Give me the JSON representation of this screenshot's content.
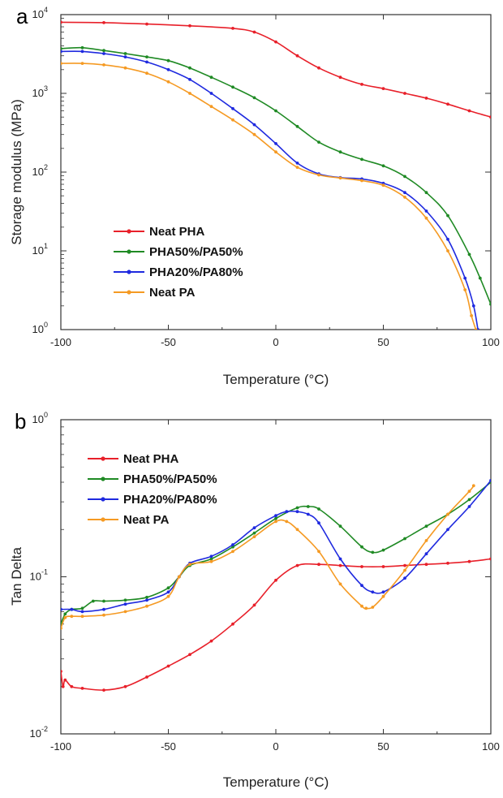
{
  "chart_data": [
    {
      "panel": "a",
      "type": "line",
      "xlabel": "Temperature (°C)",
      "ylabel": "Storage modulus (MPa)",
      "xlim": [
        -100,
        100
      ],
      "ylim": [
        1,
        10000
      ],
      "yscale": "log",
      "xticks": [
        "-100",
        "-50",
        "0",
        "50",
        "100"
      ],
      "yticks": [
        {
          "base": "10",
          "exp": "0"
        },
        {
          "base": "10",
          "exp": "1"
        },
        {
          "base": "10",
          "exp": "2"
        },
        {
          "base": "10",
          "exp": "3"
        },
        {
          "base": "10",
          "exp": "4"
        }
      ],
      "grid": false,
      "legend_position": "lower-left",
      "series": [
        {
          "name": "Neat PHA",
          "color": "#e8202a",
          "marker": "square",
          "points": [
            [
              -100,
              8000
            ],
            [
              -80,
              7900
            ],
            [
              -60,
              7600
            ],
            [
              -40,
              7200
            ],
            [
              -20,
              6700
            ],
            [
              -10,
              6000
            ],
            [
              0,
              4500
            ],
            [
              10,
              3000
            ],
            [
              20,
              2100
            ],
            [
              30,
              1600
            ],
            [
              40,
              1300
            ],
            [
              50,
              1150
            ],
            [
              60,
              1000
            ],
            [
              70,
              870
            ],
            [
              80,
              730
            ],
            [
              90,
              600
            ],
            [
              100,
              500
            ]
          ]
        },
        {
          "name": "PHA50%/PA50%",
          "color": "#1f8a24",
          "marker": "triangle",
          "points": [
            [
              -100,
              3700
            ],
            [
              -90,
              3800
            ],
            [
              -80,
              3500
            ],
            [
              -70,
              3200
            ],
            [
              -60,
              2900
            ],
            [
              -50,
              2600
            ],
            [
              -40,
              2100
            ],
            [
              -30,
              1600
            ],
            [
              -20,
              1200
            ],
            [
              -10,
              880
            ],
            [
              0,
              600
            ],
            [
              10,
              380
            ],
            [
              20,
              240
            ],
            [
              30,
              180
            ],
            [
              40,
              145
            ],
            [
              50,
              120
            ],
            [
              60,
              88
            ],
            [
              70,
              55
            ],
            [
              80,
              28
            ],
            [
              90,
              9
            ],
            [
              95,
              4.5
            ],
            [
              100,
              2.1
            ]
          ]
        },
        {
          "name": "PHA20%/PA80%",
          "color": "#1f2adf",
          "marker": "circle",
          "points": [
            [
              -100,
              3400
            ],
            [
              -90,
              3400
            ],
            [
              -80,
              3200
            ],
            [
              -70,
              2900
            ],
            [
              -60,
              2500
            ],
            [
              -50,
              2000
            ],
            [
              -40,
              1500
            ],
            [
              -30,
              1000
            ],
            [
              -20,
              640
            ],
            [
              -10,
              400
            ],
            [
              0,
              230
            ],
            [
              10,
              130
            ],
            [
              20,
              95
            ],
            [
              30,
              85
            ],
            [
              40,
              82
            ],
            [
              50,
              72
            ],
            [
              60,
              55
            ],
            [
              70,
              32
            ],
            [
              80,
              14
            ],
            [
              88,
              4.5
            ],
            [
              92,
              2
            ],
            [
              94,
              1
            ]
          ]
        },
        {
          "name": "Neat PA",
          "color": "#f59a23",
          "marker": "triangle-down",
          "points": [
            [
              -100,
              2400
            ],
            [
              -90,
              2400
            ],
            [
              -80,
              2300
            ],
            [
              -70,
              2100
            ],
            [
              -60,
              1800
            ],
            [
              -50,
              1400
            ],
            [
              -40,
              1000
            ],
            [
              -30,
              680
            ],
            [
              -20,
              460
            ],
            [
              -10,
              300
            ],
            [
              0,
              180
            ],
            [
              10,
              115
            ],
            [
              20,
              92
            ],
            [
              30,
              84
            ],
            [
              40,
              78
            ],
            [
              50,
              68
            ],
            [
              60,
              48
            ],
            [
              70,
              26
            ],
            [
              80,
              10
            ],
            [
              88,
              3.2
            ],
            [
              91,
              1.5
            ],
            [
              93,
              1
            ]
          ]
        }
      ]
    },
    {
      "panel": "b",
      "type": "line",
      "xlabel": "Temperature (°C)",
      "ylabel": "Tan Delta",
      "xlim": [
        -100,
        100
      ],
      "ylim": [
        0.01,
        1
      ],
      "yscale": "log",
      "xticks": [
        "-100",
        "-50",
        "0",
        "50",
        "100"
      ],
      "yticks": [
        {
          "base": "10",
          "exp": "-2"
        },
        {
          "base": "10",
          "exp": "-1"
        },
        {
          "base": "10",
          "exp": "0"
        }
      ],
      "grid": false,
      "legend_position": "top-left",
      "series": [
        {
          "name": "Neat PHA",
          "color": "#e8202a",
          "marker": "square",
          "points": [
            [
              -100,
              0.025
            ],
            [
              -99,
              0.02
            ],
            [
              -98,
              0.022
            ],
            [
              -95,
              0.02
            ],
            [
              -90,
              0.0195
            ],
            [
              -80,
              0.019
            ],
            [
              -70,
              0.02
            ],
            [
              -60,
              0.023
            ],
            [
              -50,
              0.027
            ],
            [
              -40,
              0.032
            ],
            [
              -30,
              0.039
            ],
            [
              -20,
              0.05
            ],
            [
              -10,
              0.066
            ],
            [
              0,
              0.095
            ],
            [
              10,
              0.118
            ],
            [
              20,
              0.12
            ],
            [
              30,
              0.118
            ],
            [
              40,
              0.116
            ],
            [
              50,
              0.116
            ],
            [
              60,
              0.118
            ],
            [
              70,
              0.12
            ],
            [
              80,
              0.122
            ],
            [
              90,
              0.125
            ],
            [
              100,
              0.13
            ]
          ]
        },
        {
          "name": "PHA50%/PA50%",
          "color": "#1f8a24",
          "marker": "triangle",
          "points": [
            [
              -100,
              0.05
            ],
            [
              -98,
              0.058
            ],
            [
              -95,
              0.062
            ],
            [
              -90,
              0.063
            ],
            [
              -85,
              0.07
            ],
            [
              -80,
              0.07
            ],
            [
              -70,
              0.071
            ],
            [
              -60,
              0.074
            ],
            [
              -50,
              0.085
            ],
            [
              -45,
              0.1
            ],
            [
              -40,
              0.118
            ],
            [
              -30,
              0.13
            ],
            [
              -20,
              0.155
            ],
            [
              -10,
              0.19
            ],
            [
              0,
              0.235
            ],
            [
              10,
              0.275
            ],
            [
              15,
              0.28
            ],
            [
              20,
              0.27
            ],
            [
              30,
              0.21
            ],
            [
              40,
              0.155
            ],
            [
              45,
              0.143
            ],
            [
              50,
              0.148
            ],
            [
              60,
              0.175
            ],
            [
              70,
              0.21
            ],
            [
              80,
              0.25
            ],
            [
              90,
              0.31
            ],
            [
              100,
              0.4
            ]
          ]
        },
        {
          "name": "PHA20%/PA80%",
          "color": "#1f2adf",
          "marker": "circle",
          "points": [
            [
              -100,
              0.062
            ],
            [
              -95,
              0.062
            ],
            [
              -90,
              0.06
            ],
            [
              -80,
              0.062
            ],
            [
              -70,
              0.067
            ],
            [
              -60,
              0.071
            ],
            [
              -50,
              0.08
            ],
            [
              -45,
              0.1
            ],
            [
              -40,
              0.122
            ],
            [
              -30,
              0.135
            ],
            [
              -20,
              0.16
            ],
            [
              -10,
              0.205
            ],
            [
              0,
              0.245
            ],
            [
              5,
              0.26
            ],
            [
              10,
              0.26
            ],
            [
              15,
              0.25
            ],
            [
              20,
              0.22
            ],
            [
              30,
              0.13
            ],
            [
              40,
              0.088
            ],
            [
              45,
              0.08
            ],
            [
              50,
              0.08
            ],
            [
              60,
              0.098
            ],
            [
              70,
              0.14
            ],
            [
              80,
              0.2
            ],
            [
              90,
              0.28
            ],
            [
              100,
              0.41
            ]
          ]
        },
        {
          "name": "Neat PA",
          "color": "#f59a23",
          "marker": "triangle-down",
          "points": [
            [
              -100,
              0.047
            ],
            [
              -98,
              0.055
            ],
            [
              -95,
              0.056
            ],
            [
              -90,
              0.056
            ],
            [
              -80,
              0.057
            ],
            [
              -70,
              0.06
            ],
            [
              -60,
              0.065
            ],
            [
              -50,
              0.075
            ],
            [
              -45,
              0.1
            ],
            [
              -40,
              0.12
            ],
            [
              -30,
              0.125
            ],
            [
              -20,
              0.145
            ],
            [
              -10,
              0.18
            ],
            [
              0,
              0.225
            ],
            [
              5,
              0.225
            ],
            [
              10,
              0.2
            ],
            [
              20,
              0.145
            ],
            [
              30,
              0.09
            ],
            [
              40,
              0.065
            ],
            [
              42,
              0.063
            ],
            [
              45,
              0.064
            ],
            [
              50,
              0.075
            ],
            [
              60,
              0.11
            ],
            [
              70,
              0.17
            ],
            [
              80,
              0.25
            ],
            [
              90,
              0.35
            ],
            [
              92,
              0.38
            ]
          ]
        }
      ]
    }
  ]
}
